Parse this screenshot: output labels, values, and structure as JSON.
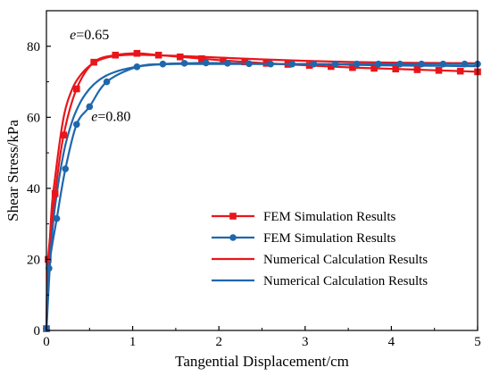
{
  "chart_data": {
    "type": "line",
    "xlabel": "Tangential Displacement/cm",
    "ylabel": "Shear Stress/kPa",
    "xlim": [
      0,
      5
    ],
    "ylim": [
      0,
      90
    ],
    "xticks": [
      0,
      1,
      2,
      3,
      4,
      5
    ],
    "yticks": [
      0,
      20,
      40,
      60,
      80
    ],
    "grid": false,
    "legend_position": "lower-right",
    "annotations": [
      {
        "var": "e",
        "text": "=0.65",
        "x": 0.27,
        "y": 82
      },
      {
        "var": "e",
        "text": "=0.80",
        "x": 0.52,
        "y": 59
      }
    ],
    "series": [
      {
        "name": "FEM Simulation Results",
        "color": "#e8161b",
        "style": "line-markers",
        "marker": "square",
        "x": [
          0,
          0.02,
          0.1,
          0.2,
          0.35,
          0.55,
          0.8,
          1.05,
          1.3,
          1.55,
          1.8,
          2.05,
          2.3,
          2.55,
          2.8,
          3.05,
          3.3,
          3.55,
          3.8,
          4.05,
          4.3,
          4.55,
          4.8,
          5.0
        ],
        "y": [
          0.5,
          20,
          38.5,
          55,
          68,
          75.5,
          77.5,
          78,
          77.5,
          77,
          76.5,
          76,
          75.6,
          75.2,
          74.9,
          74.6,
          74.3,
          74,
          73.8,
          73.6,
          73.4,
          73.2,
          73,
          72.8
        ]
      },
      {
        "name": "FEM Simulation Results",
        "color": "#1f67ad",
        "style": "line-markers",
        "marker": "circle",
        "x": [
          0,
          0.03,
          0.12,
          0.22,
          0.35,
          0.5,
          0.7,
          1.05,
          1.35,
          1.6,
          1.85,
          2.1,
          2.35,
          2.6,
          2.85,
          3.1,
          3.35,
          3.6,
          3.85,
          4.1,
          4.35,
          4.6,
          4.85,
          5.0
        ],
        "y": [
          0.5,
          17.5,
          31.5,
          45.5,
          58,
          63,
          70,
          74.2,
          75,
          75.2,
          75.3,
          75.2,
          75.1,
          75,
          75,
          75,
          75,
          75,
          75,
          75,
          75,
          75,
          75,
          75
        ]
      },
      {
        "name": "Numerical Calculation Results",
        "color": "#e8161b",
        "style": "line",
        "x": [
          0,
          0.05,
          0.1,
          0.2,
          0.3,
          0.4,
          0.5,
          0.6,
          0.7,
          0.8,
          0.9,
          1.0,
          1.2,
          1.5,
          2.0,
          2.5,
          3.0,
          3.5,
          4.0,
          4.5,
          5.0
        ],
        "y": [
          0,
          30,
          43,
          60,
          68,
          72,
          74.5,
          76,
          76.8,
          77.3,
          77.5,
          77.6,
          77.5,
          77.3,
          76.8,
          76.3,
          75.9,
          75.6,
          75.4,
          75.3,
          75.2
        ]
      },
      {
        "name": "Numerical Calculation Results",
        "color": "#1f67ad",
        "style": "line",
        "x": [
          0,
          0.05,
          0.1,
          0.2,
          0.3,
          0.4,
          0.5,
          0.6,
          0.7,
          0.8,
          0.9,
          1.0,
          1.2,
          1.5,
          2.0,
          2.5,
          3.0,
          3.5,
          4.0,
          4.5,
          5.0
        ],
        "y": [
          0,
          22,
          35,
          50,
          59,
          64.5,
          68,
          70.3,
          71.8,
          72.8,
          73.5,
          74,
          74.7,
          75,
          75,
          75,
          75,
          74.8,
          74.6,
          74.5,
          74.4
        ]
      }
    ]
  }
}
